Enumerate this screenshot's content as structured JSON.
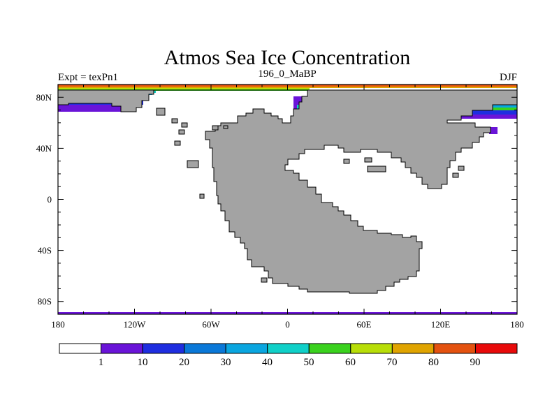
{
  "title": "Atmos Sea Ice Concentration",
  "left_label": "Expt = texPn1",
  "center_label": "196_0_MaBP",
  "right_label": "DJF",
  "x_ticks": [
    "180",
    "120W",
    "60W",
    "0",
    "60E",
    "120E",
    "180"
  ],
  "y_ticks": [
    "80N",
    "40N",
    "0",
    "40S",
    "80S"
  ],
  "colorbar": {
    "labels": [
      "1",
      "10",
      "20",
      "30",
      "40",
      "50",
      "60",
      "70",
      "80",
      "90"
    ],
    "colors": [
      "#ffffff",
      "#6a14d8",
      "#1f2ee0",
      "#0a78d8",
      "#0aa6e0",
      "#10d0c8",
      "#3ad21e",
      "#b8de08",
      "#e0a400",
      "#e45210",
      "#e80a0a"
    ]
  },
  "colors": {
    "land": "#a3a3a3",
    "ocean": "#ffffff",
    "frame": "#000000"
  }
}
